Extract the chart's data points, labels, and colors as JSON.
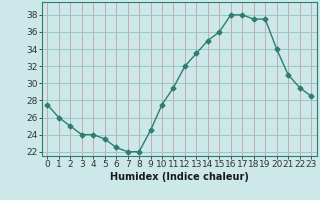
{
  "x": [
    0,
    1,
    2,
    3,
    4,
    5,
    6,
    7,
    8,
    9,
    10,
    11,
    12,
    13,
    14,
    15,
    16,
    17,
    18,
    19,
    20,
    21,
    22,
    23
  ],
  "y": [
    27.5,
    26.0,
    25.0,
    24.0,
    24.0,
    23.5,
    22.5,
    22.0,
    22.0,
    24.5,
    27.5,
    29.5,
    32.0,
    33.5,
    35.0,
    36.0,
    38.0,
    38.0,
    37.5,
    37.5,
    34.0,
    31.0,
    29.5,
    28.5
  ],
  "line_color": "#2e7d6e",
  "marker": "D",
  "markersize": 2.5,
  "bg_color": "#cce8e8",
  "grid_color_x": "#c8a0a0",
  "grid_color_y": "#90c4c4",
  "xlabel": "Humidex (Indice chaleur)",
  "ylabel_ticks": [
    22,
    24,
    26,
    28,
    30,
    32,
    34,
    36,
    38
  ],
  "xlim": [
    -0.5,
    23.5
  ],
  "ylim": [
    21.5,
    39.5
  ],
  "xlabel_fontsize": 7,
  "tick_fontsize": 6.5,
  "title": ""
}
